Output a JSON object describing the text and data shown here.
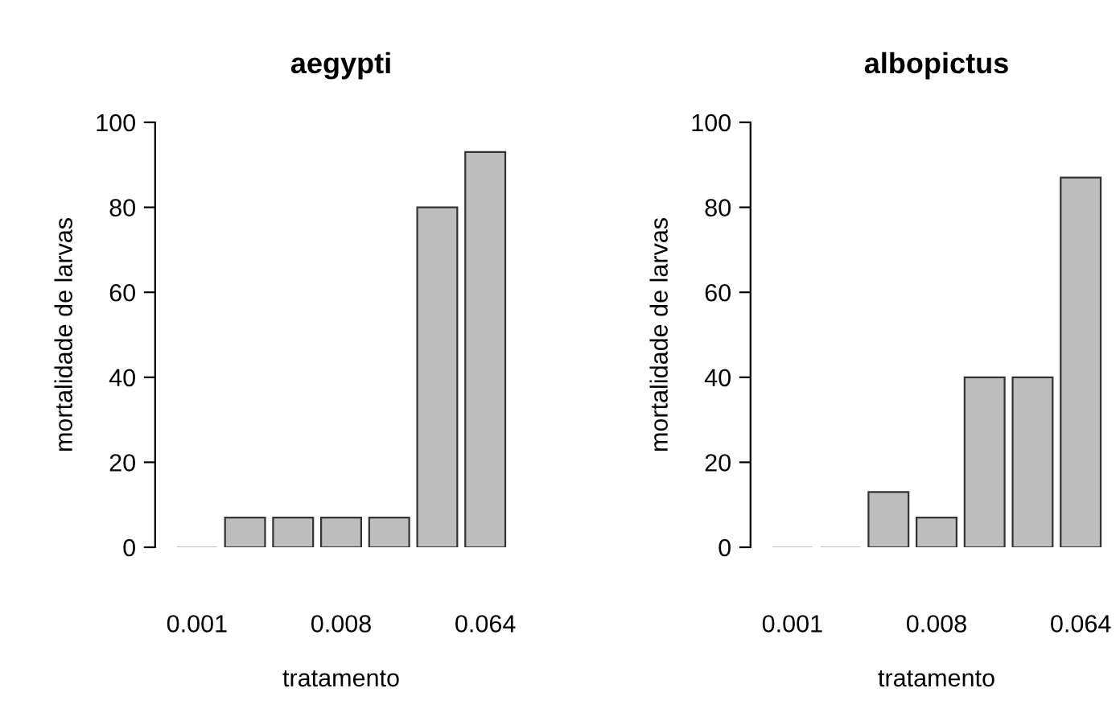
{
  "chart_data": [
    {
      "type": "bar",
      "title": "aegypti",
      "xlabel": "tratamento",
      "ylabel": "mortalidade de larvas",
      "categories": [
        "0.001",
        null,
        null,
        "0.008",
        null,
        null,
        "0.064"
      ],
      "values": [
        0,
        7,
        7,
        7,
        7,
        80,
        93
      ],
      "color": "#bebebe",
      "ylim": [
        0,
        100
      ],
      "yticks": [
        0,
        20,
        40,
        60,
        80,
        100
      ],
      "grid": false,
      "legend": false
    },
    {
      "type": "bar",
      "title": "albopictus",
      "xlabel": "tratamento",
      "ylabel": "mortalidade de larvas",
      "categories": [
        "0.001",
        null,
        null,
        "0.008",
        null,
        null,
        "0.064"
      ],
      "values": [
        0,
        0,
        13,
        7,
        40,
        40,
        87
      ],
      "color": "#bebebe",
      "ylim": [
        0,
        100
      ],
      "yticks": [
        0,
        20,
        40,
        60,
        80,
        100
      ],
      "grid": false,
      "legend": false
    }
  ]
}
